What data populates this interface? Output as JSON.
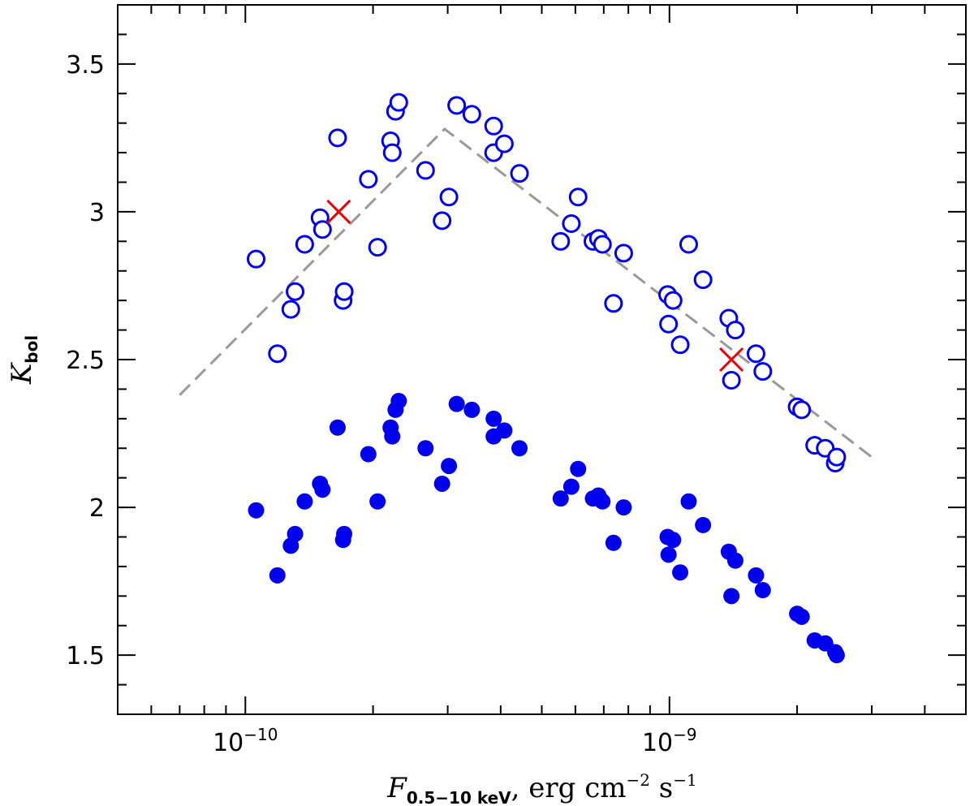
{
  "chart_data": {
    "type": "scatter",
    "xscale": "log",
    "xlim": [
      5e-11,
      5e-09
    ],
    "ylim": [
      1.3,
      3.7
    ],
    "xlabel": {
      "main": "F",
      "sub": "0.5−10 keV",
      "rest": ", erg cm",
      "exp1": "−2",
      "rest2": " s",
      "exp2": "−1"
    },
    "ylabel": {
      "main": "K",
      "sub": "bol"
    },
    "xticks": [
      {
        "value": 1e-10,
        "base": "10",
        "exp": "−10"
      },
      {
        "value": 1e-09,
        "base": "10",
        "exp": "−9"
      }
    ],
    "yticks": [
      {
        "value": 1.5,
        "label": "1.5"
      },
      {
        "value": 2,
        "label": "2"
      },
      {
        "value": 2.5,
        "label": "2.5"
      },
      {
        "value": 3,
        "label": "3"
      },
      {
        "value": 3.5,
        "label": "3.5"
      }
    ],
    "colors": {
      "points": "#0000ee",
      "cross": "#ee0000",
      "fit": "#999999",
      "axis": "#000000"
    },
    "series": [
      {
        "name": "open",
        "marker": "open-circle",
        "x": [
          1.06e-10,
          1.19e-10,
          1.28e-10,
          1.31e-10,
          1.38e-10,
          1.5e-10,
          1.52e-10,
          1.65e-10,
          1.7e-10,
          1.71e-10,
          1.95e-10,
          2.05e-10,
          2.2e-10,
          2.22e-10,
          2.26e-10,
          2.3e-10,
          2.66e-10,
          2.91e-10,
          3.02e-10,
          3.15e-10,
          3.42e-10,
          3.85e-10,
          3.85e-10,
          4.08e-10,
          4.43e-10,
          5.54e-10,
          5.87e-10,
          6.09e-10,
          6.6e-10,
          6.8e-10,
          6.95e-10,
          7.38e-10,
          7.8e-10,
          9.9e-10,
          9.95e-10,
          1.02e-09,
          1.06e-09,
          1.11e-09,
          1.2e-09,
          1.38e-09,
          1.4e-09,
          1.43e-09,
          1.6e-09,
          1.66e-09,
          2e-09,
          2.05e-09,
          2.2e-09,
          2.33e-09,
          2.46e-09,
          2.48e-09
        ],
        "y": [
          2.84,
          2.52,
          2.67,
          2.73,
          2.89,
          2.98,
          2.94,
          3.25,
          2.7,
          2.73,
          3.11,
          2.88,
          3.24,
          3.2,
          3.34,
          3.37,
          3.14,
          2.97,
          3.05,
          3.36,
          3.33,
          3.29,
          3.2,
          3.23,
          3.13,
          2.9,
          2.96,
          3.05,
          2.9,
          2.91,
          2.89,
          2.69,
          2.86,
          2.72,
          2.62,
          2.7,
          2.55,
          2.89,
          2.77,
          2.64,
          2.43,
          2.6,
          2.52,
          2.46,
          2.34,
          2.33,
          2.21,
          2.2,
          2.15,
          2.17
        ]
      },
      {
        "name": "filled",
        "marker": "filled-circle",
        "x": [
          1.06e-10,
          1.19e-10,
          1.28e-10,
          1.31e-10,
          1.38e-10,
          1.5e-10,
          1.52e-10,
          1.65e-10,
          1.7e-10,
          1.71e-10,
          1.95e-10,
          2.05e-10,
          2.2e-10,
          2.22e-10,
          2.26e-10,
          2.3e-10,
          2.66e-10,
          2.91e-10,
          3.02e-10,
          3.15e-10,
          3.42e-10,
          3.85e-10,
          3.85e-10,
          4.08e-10,
          4.43e-10,
          5.54e-10,
          5.87e-10,
          6.09e-10,
          6.6e-10,
          6.8e-10,
          6.95e-10,
          7.38e-10,
          7.8e-10,
          9.9e-10,
          9.95e-10,
          1.02e-09,
          1.06e-09,
          1.11e-09,
          1.2e-09,
          1.38e-09,
          1.4e-09,
          1.43e-09,
          1.6e-09,
          1.66e-09,
          2e-09,
          2.05e-09,
          2.2e-09,
          2.33e-09,
          2.46e-09,
          2.48e-09
        ],
        "y": [
          1.99,
          1.77,
          1.87,
          1.91,
          2.02,
          2.08,
          2.06,
          2.27,
          1.89,
          1.91,
          2.18,
          2.02,
          2.27,
          2.24,
          2.33,
          2.36,
          2.2,
          2.08,
          2.14,
          2.35,
          2.33,
          2.3,
          2.24,
          2.26,
          2.2,
          2.03,
          2.07,
          2.13,
          2.03,
          2.04,
          2.02,
          1.88,
          2.0,
          1.9,
          1.84,
          1.89,
          1.78,
          2.02,
          1.94,
          1.85,
          1.7,
          1.82,
          1.77,
          1.72,
          1.64,
          1.63,
          1.55,
          1.54,
          1.51,
          1.5
        ]
      }
    ],
    "crosses": {
      "x": [
        1.66e-10,
        1.4e-09
      ],
      "y": [
        3.0,
        2.5
      ]
    },
    "fit_line": {
      "x": [
        7e-11,
        2.95e-10,
        3e-09
      ],
      "y": [
        2.38,
        3.28,
        2.17
      ]
    }
  }
}
